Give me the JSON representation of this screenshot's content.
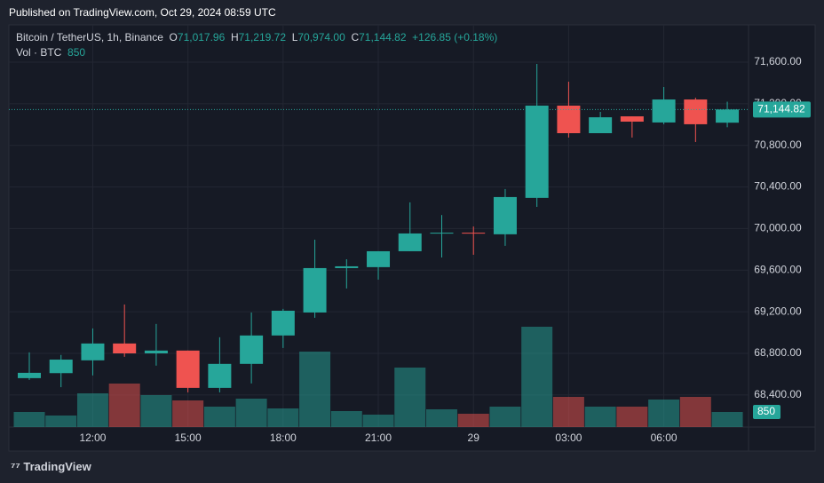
{
  "header": {
    "published": "Published on TradingView.com, Oct 29, 2024 08:59 UTC"
  },
  "chart_data": {
    "type": "candlestick",
    "title": "Bitcoin / TetherUS, 1h, Binance",
    "ohlc": [
      {
        "label": "O",
        "text": "71,017.96"
      },
      {
        "label": "H",
        "text": "71,219.72"
      },
      {
        "label": "L",
        "text": "70,974.00"
      },
      {
        "label": "C",
        "text": "71,144.82"
      }
    ],
    "change": "+126.85 (+0.18%)",
    "volume_label": "Vol · BTC",
    "categories": [
      null,
      null,
      "12:00",
      null,
      null,
      "15:00",
      null,
      null,
      "18:00",
      null,
      null,
      "21:00",
      null,
      null,
      "29",
      null,
      null,
      "03:00",
      null,
      null,
      "06:00",
      null,
      null
    ],
    "open": [
      68562,
      68610,
      68733,
      68895,
      68800,
      68827,
      68468,
      68699,
      68972,
      69193,
      69620,
      69629,
      69782,
      69953,
      69960,
      69945,
      70295,
      71182,
      70917,
      71079,
      71020,
      71241,
      71017.96
    ],
    "high": [
      68810,
      68785,
      69040,
      69270,
      69083,
      68827,
      68955,
      69193,
      69228,
      69893,
      69705,
      69782,
      70252,
      70130,
      70020,
      70380,
      71583,
      71412,
      71122,
      71079,
      71361,
      71258,
      71219.72
    ],
    "low": [
      68545,
      68475,
      68588,
      68767,
      68682,
      68425,
      68425,
      68511,
      68852,
      69142,
      69424,
      69509,
      69782,
      69722,
      69748,
      69834,
      70209,
      70875,
      70917,
      70875,
      71003,
      70832,
      70974.0
    ],
    "close": [
      68613,
      68740,
      68895,
      68800,
      68827,
      68468,
      68699,
      68972,
      69210,
      69620,
      69637,
      69782,
      69953,
      69960,
      69953,
      70303,
      71182,
      70917,
      71070,
      71028,
      71241,
      71003,
      71144.82
    ],
    "volume": [
      850,
      650,
      1900,
      2450,
      1800,
      1500,
      1150,
      1600,
      1050,
      4250,
      900,
      700,
      3350,
      1000,
      750,
      1150,
      5650,
      1700,
      1150,
      1150,
      1550,
      1700,
      850
    ],
    "up_color": "#26a69a",
    "down_color": "#ef5350",
    "ylim": [
      68100,
      71950
    ],
    "yticks": [
      {
        "value": 68400,
        "label": "68,400.00"
      },
      {
        "value": 68800,
        "label": "68,800.00"
      },
      {
        "value": 69200,
        "label": "69,200.00"
      },
      {
        "value": 69600,
        "label": "69,600.00"
      },
      {
        "value": 70000,
        "label": "70,000.00"
      },
      {
        "value": 70400,
        "label": "70,400.00"
      },
      {
        "value": 70800,
        "label": "70,800.00"
      },
      {
        "value": 71200,
        "label": "71,200.00"
      },
      {
        "value": 71600,
        "label": "71,600.00"
      }
    ],
    "grid": true
  },
  "footer": {
    "brand": "TradingView"
  }
}
